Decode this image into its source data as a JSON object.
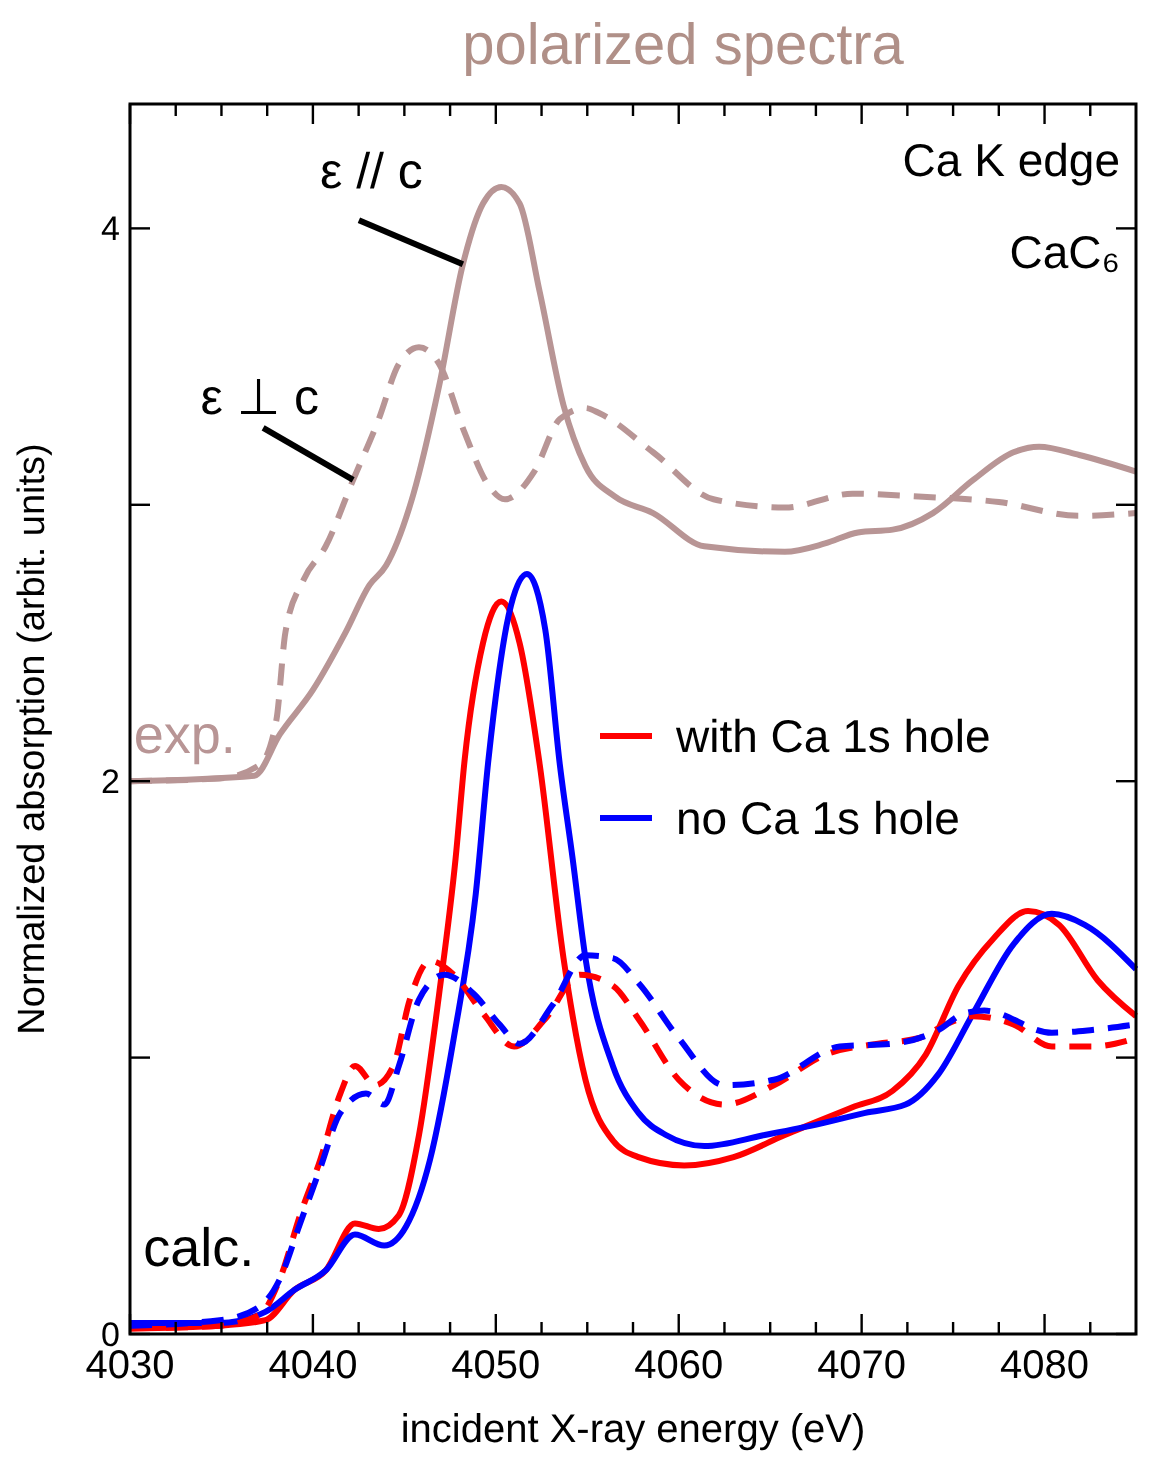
{
  "chart_data": {
    "type": "line",
    "title": "polarized spectra",
    "xlabel": "incident X-ray energy (eV)",
    "ylabel": "Normalized absorption (arbit. units)",
    "xlim": [
      4030,
      4085
    ],
    "ylim": [
      0,
      4.45
    ],
    "xticks": [
      4030,
      {
        "value": 4032.5,
        "label": null
      },
      {
        "value": 4035,
        "label": null
      },
      {
        "value": 4037.5,
        "label": null
      },
      4040,
      {
        "value": 4042.5,
        "label": null
      },
      {
        "value": 4045,
        "label": null
      },
      {
        "value": 4047.5,
        "label": null
      },
      4050,
      {
        "value": 4052.5,
        "label": null
      },
      {
        "value": 4055,
        "label": null
      },
      {
        "value": 4057.5,
        "label": null
      },
      4060,
      {
        "value": 4062.5,
        "label": null
      },
      {
        "value": 4065,
        "label": null
      },
      {
        "value": 4067.5,
        "label": null
      },
      4070,
      {
        "value": 4072.5,
        "label": null
      },
      {
        "value": 4075,
        "label": null
      },
      {
        "value": 4077.5,
        "label": null
      },
      4080,
      {
        "value": 4082.5,
        "label": null
      }
    ],
    "yticks": [
      0,
      {
        "value": 1,
        "label": null
      },
      2,
      {
        "value": 3,
        "label": null
      },
      4
    ],
    "grid": false,
    "legend": "right",
    "annotations": [
      {
        "text": "ε // c",
        "x": 4048.2,
        "y": 3.87
      },
      {
        "text": "ε ⊥ c",
        "x": 4042.2,
        "y": 3.09
      },
      {
        "text": "exp.",
        "x": 4030.2,
        "y": 2.0
      },
      {
        "text": "calc.",
        "x": 4030.5,
        "y": 0.03
      },
      "Ca K edge",
      "CaC₆"
    ],
    "series": [
      {
        "color": "#b89595",
        "line_style": "solid",
        "x": [
          4030,
          4036.8,
          4038.2,
          4040,
          4041.8,
          4043.1,
          4044,
          4045.5,
          4046.9,
          4048.2,
          4049.3,
          4050.3,
          4051.3,
          4052.4,
          4053.7,
          4054.9,
          4056.5,
          4058.6,
          4061.4,
          4065.8,
          4068,
          4069.8,
          4071.7,
          4073.9,
          4076.1,
          4078.3,
          4079.7,
          4081.9,
          4085
        ],
        "values": [
          2.0,
          2.02,
          2.17,
          2.33,
          2.54,
          2.71,
          2.78,
          3.04,
          3.43,
          3.87,
          4.09,
          4.15,
          4.09,
          3.77,
          3.36,
          3.14,
          3.03,
          2.97,
          2.85,
          2.83,
          2.86,
          2.9,
          2.91,
          2.97,
          3.09,
          3.19,
          3.21,
          3.18,
          3.12
        ]
      },
      {
        "color": "#b89595",
        "line_style": "dashed",
        "x": [
          4030,
          4034.9,
          4037.1,
          4038,
          4038.5,
          4039.5,
          4040.7,
          4042.2,
          4043.6,
          4044.7,
          4045.8,
          4046.9,
          4048.3,
          4049.6,
          4050.5,
          4052.1,
          4053.5,
          4054.9,
          4055.7,
          4058.6,
          4061.9,
          4065.8,
          4069.5,
          4073.1,
          4077.5,
          4081.9,
          4085
        ],
        "values": [
          2.0,
          2.01,
          2.06,
          2.22,
          2.54,
          2.73,
          2.85,
          3.09,
          3.31,
          3.51,
          3.57,
          3.51,
          3.26,
          3.07,
          3.02,
          3.12,
          3.31,
          3.35,
          3.33,
          3.19,
          3.02,
          2.99,
          3.04,
          3.03,
          3.01,
          2.96,
          2.97
        ]
      },
      {
        "name": "with Ca 1s hole",
        "color": "#ff0000",
        "line_style": "solid",
        "x": [
          4030,
          4034.9,
          4037.4,
          4039,
          4040.7,
          4042.3,
          4043.6,
          4044.7,
          4045.8,
          4046.9,
          4047.8,
          4048.3,
          4049.3,
          4050.3,
          4051.3,
          4052.4,
          4053.7,
          4054.9,
          4056.4,
          4057.8,
          4060.3,
          4063,
          4065.8,
          4069.5,
          4071.7,
          4073.5,
          4075.3,
          4077.2,
          4079.1,
          4080.8,
          4082.9,
          4085
        ],
        "values": [
          0.02,
          0.03,
          0.05,
          0.16,
          0.23,
          0.4,
          0.38,
          0.43,
          0.72,
          1.23,
          1.72,
          2.08,
          2.5,
          2.65,
          2.5,
          2.06,
          1.36,
          0.92,
          0.7,
          0.64,
          0.61,
          0.64,
          0.72,
          0.82,
          0.88,
          1.01,
          1.26,
          1.43,
          1.53,
          1.48,
          1.28,
          1.15
        ]
      },
      {
        "name": "no Ca 1s hole",
        "color": "#0000ff",
        "line_style": "solid",
        "x": [
          4030,
          4034.9,
          4037.4,
          4039,
          4040.7,
          4042.3,
          4043.9,
          4045.1,
          4046.4,
          4047.7,
          4048.9,
          4049.6,
          4050.7,
          4051.7,
          4052.7,
          4053.5,
          4054.2,
          4054.9,
          4056.4,
          4057.8,
          4059.3,
          4061.4,
          4064.7,
          4067.7,
          4070.2,
          4072.4,
          4074.2,
          4076.1,
          4078.3,
          4080.4,
          4082.2,
          4085
        ],
        "values": [
          0.04,
          0.04,
          0.08,
          0.16,
          0.23,
          0.36,
          0.32,
          0.39,
          0.63,
          1.07,
          1.59,
          2.08,
          2.6,
          2.75,
          2.55,
          2.06,
          1.72,
          1.36,
          0.97,
          0.8,
          0.72,
          0.68,
          0.72,
          0.76,
          0.8,
          0.83,
          0.94,
          1.16,
          1.41,
          1.52,
          1.48,
          1.32
        ]
      },
      {
        "color": "#ff0000",
        "line_style": "dashed",
        "x": [
          4030,
          4034.9,
          4037.1,
          4038.2,
          4039.3,
          4040.4,
          4041.5,
          4042.3,
          4043.4,
          4044.4,
          4045.3,
          4046.4,
          4047.7,
          4049.3,
          4051,
          4052.7,
          4054.6,
          4056.4,
          4057.8,
          4060,
          4062.5,
          4065.2,
          4068,
          4070.9,
          4073.1,
          4074.6,
          4076.1,
          4078.3,
          4080.4,
          4082.6,
          4085
        ],
        "values": [
          0.02,
          0.03,
          0.07,
          0.2,
          0.43,
          0.63,
          0.87,
          0.97,
          0.9,
          0.97,
          1.21,
          1.35,
          1.3,
          1.16,
          1.04,
          1.14,
          1.3,
          1.26,
          1.14,
          0.92,
          0.83,
          0.9,
          1.01,
          1.05,
          1.07,
          1.12,
          1.15,
          1.12,
          1.04,
          1.04,
          1.07
        ]
      },
      {
        "color": "#0000ff",
        "line_style": "dashed",
        "x": [
          4030,
          4034.9,
          4037.1,
          4038.2,
          4039.3,
          4040.4,
          4041.5,
          4042.9,
          4043.9,
          4044.7,
          4045.8,
          4047.2,
          4048.8,
          4050.2,
          4051.3,
          4053.1,
          4054.9,
          4056.4,
          4057.8,
          4060,
          4062.5,
          4065.2,
          4068.8,
          4071.7,
          4074.2,
          4075.6,
          4076.7,
          4080.4,
          4082.6,
          4085
        ],
        "values": [
          0.03,
          0.05,
          0.1,
          0.2,
          0.4,
          0.6,
          0.8,
          0.87,
          0.83,
          0.97,
          1.21,
          1.3,
          1.23,
          1.12,
          1.05,
          1.19,
          1.37,
          1.36,
          1.27,
          1.07,
          0.9,
          0.92,
          1.04,
          1.05,
          1.1,
          1.16,
          1.17,
          1.09,
          1.1,
          1.12
        ]
      }
    ]
  }
}
